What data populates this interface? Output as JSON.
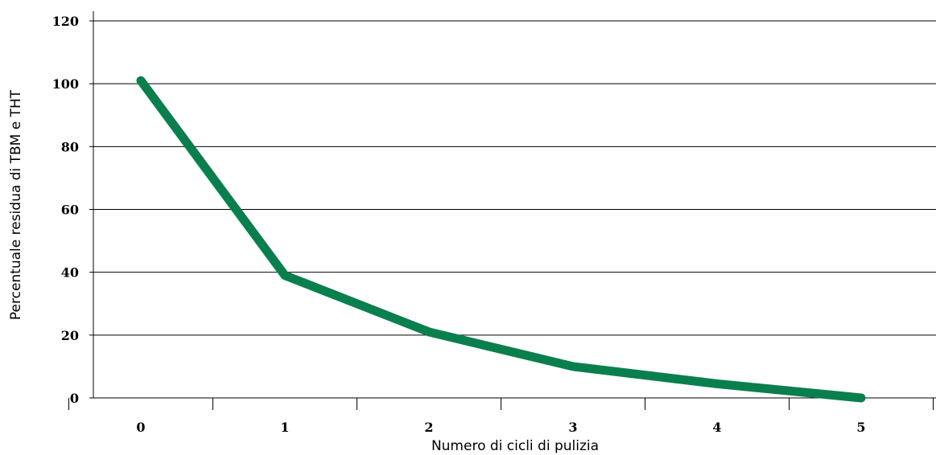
{
  "chart_data": {
    "type": "line",
    "title": "",
    "xlabel": "Numero di cicli di pulizia",
    "ylabel": "Percentuale residua di TBM e THT",
    "categories": [
      "0",
      "1",
      "2",
      "3",
      "4",
      "5"
    ],
    "x": [
      0,
      1,
      2,
      3,
      4,
      5
    ],
    "series": [
      {
        "values": [
          101,
          39,
          21,
          10,
          4.5,
          0
        ],
        "color": "#0a7f4e"
      }
    ],
    "ylim": [
      0,
      120
    ],
    "yticks": [
      0,
      20,
      40,
      60,
      80,
      100,
      120
    ],
    "grid": true,
    "legend": "none"
  }
}
